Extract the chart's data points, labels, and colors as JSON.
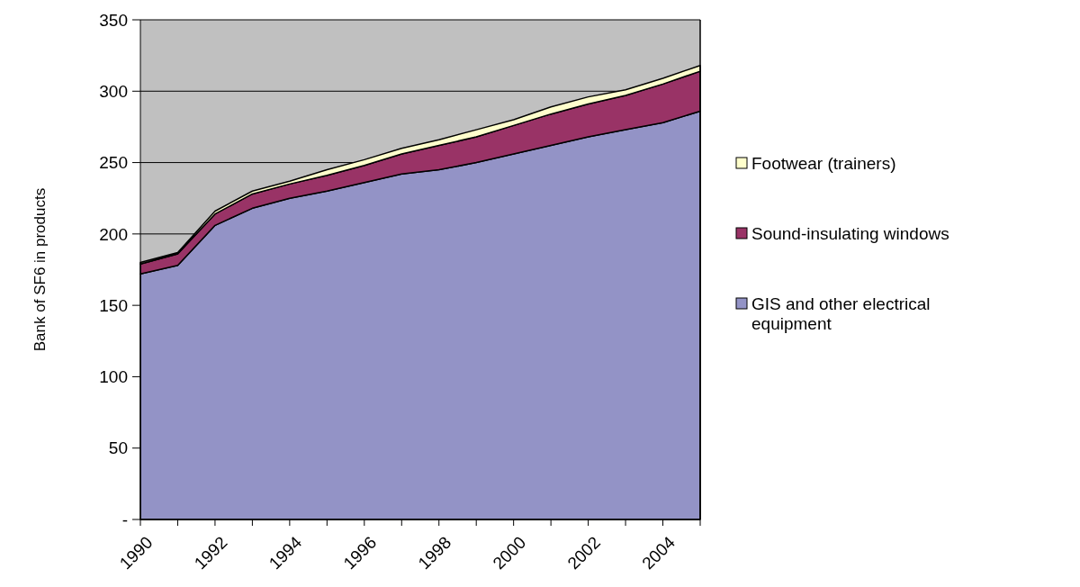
{
  "chart_data": {
    "type": "area",
    "stacked": true,
    "ylabel": "Bank of SF6 in products",
    "categories": [
      "1990",
      null,
      "1992",
      null,
      "1994",
      null,
      "1996",
      null,
      "1998",
      null,
      "2000",
      null,
      "2002",
      null,
      "2004",
      null
    ],
    "series": [
      {
        "name": "GIS and other electrical equipment",
        "color": "#9393c6",
        "values": [
          172,
          178,
          206,
          218,
          225,
          230,
          236,
          242,
          245,
          250,
          256,
          262,
          268,
          273,
          278,
          286
        ]
      },
      {
        "name": "Sound-insulating windows",
        "color": "#993366",
        "values": [
          7,
          8,
          8,
          10,
          10,
          11,
          12,
          14,
          17,
          18,
          20,
          22,
          23,
          24,
          27,
          28
        ]
      },
      {
        "name": "Footwear (trainers)",
        "color": "#ffffcc",
        "values": [
          1,
          1,
          2,
          2,
          2,
          4,
          4,
          4,
          4,
          5,
          4,
          5,
          5,
          4,
          4,
          4
        ]
      }
    ],
    "ylim": [
      0,
      350
    ],
    "yticks": [
      {
        "value": 0,
        "label": "-"
      },
      50,
      100,
      150,
      200,
      250,
      300,
      350
    ],
    "grid": "y",
    "legend": "right"
  }
}
